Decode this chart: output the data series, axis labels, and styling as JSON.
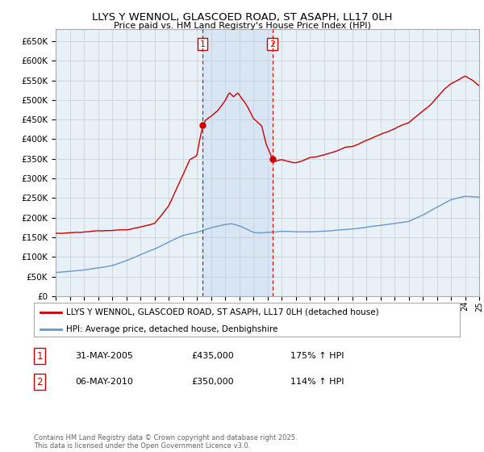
{
  "title": "LLYS Y WENNOL, GLASCOED ROAD, ST ASAPH, LL17 0LH",
  "subtitle": "Price paid vs. HM Land Registry's House Price Index (HPI)",
  "ylim": [
    0,
    680000
  ],
  "yticks": [
    0,
    50000,
    100000,
    150000,
    200000,
    250000,
    300000,
    350000,
    400000,
    450000,
    500000,
    550000,
    600000,
    650000
  ],
  "x_start_year": 1995,
  "x_end_year": 2025,
  "marker1": {
    "year": 2005.41,
    "label": "1",
    "date": "31-MAY-2005",
    "price": 435000,
    "pct": "175%",
    "dir": "↑",
    "color": "#cc0000"
  },
  "marker2": {
    "year": 2010.35,
    "label": "2",
    "date": "06-MAY-2010",
    "price": 350000,
    "pct": "114%",
    "dir": "↑",
    "color": "#cc0000"
  },
  "shade_region": [
    2005.41,
    2010.35
  ],
  "hpi_color": "#6699cc",
  "price_color": "#cc0000",
  "grid_color": "#cccccc",
  "background_chart": "#e8f0f8",
  "legend_label_price": "LLYS Y WENNOL, GLASCOED ROAD, ST ASAPH, LL17 0LH (detached house)",
  "legend_label_hpi": "HPI: Average price, detached house, Denbighshire",
  "footnote": "Contains HM Land Registry data © Crown copyright and database right 2025.\nThis data is licensed under the Open Government Licence v3.0."
}
